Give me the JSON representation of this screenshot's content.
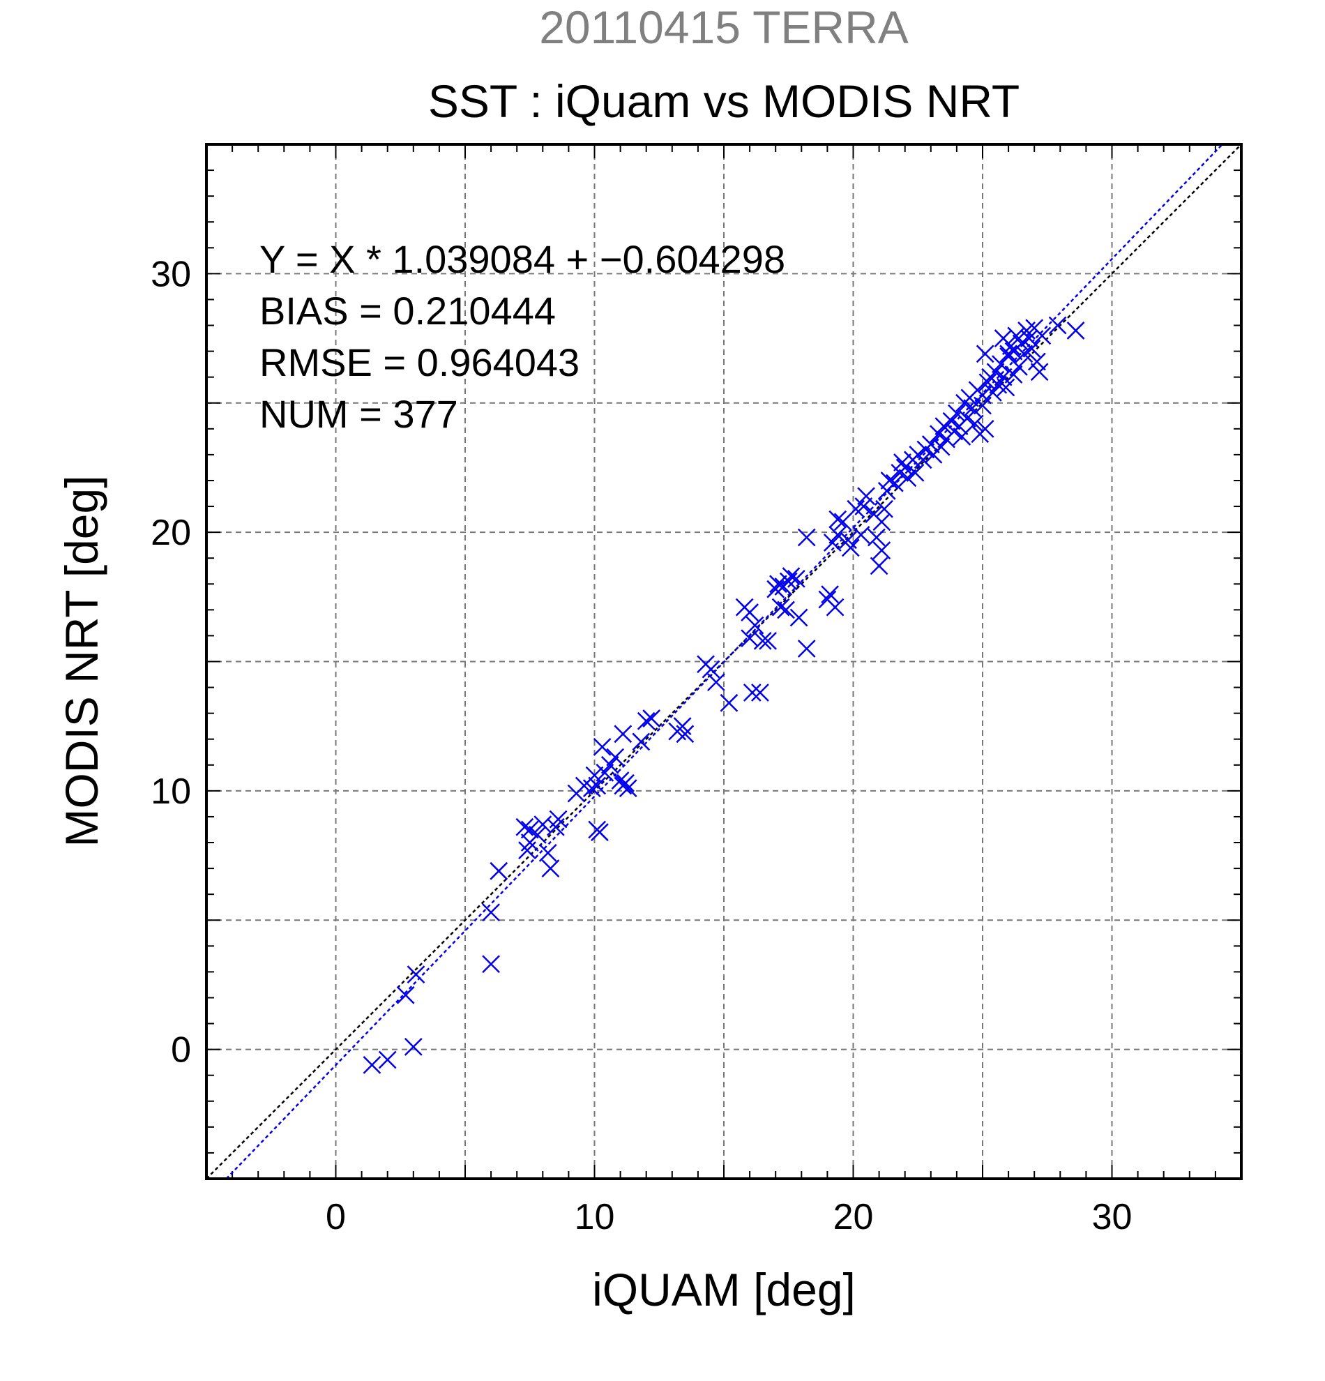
{
  "chart_data": {
    "type": "scatter",
    "subtitle": "20110415 TERRA",
    "title": "SST : iQuam vs MODIS NRT",
    "xlabel": "iQUAM [deg]",
    "ylabel": "MODIS NRT [deg]",
    "xlim": [
      -5,
      35
    ],
    "ylim": [
      -5,
      35
    ],
    "xticks": [
      0,
      10,
      20,
      30
    ],
    "yticks": [
      0,
      10,
      20,
      30
    ],
    "grid": true,
    "stats": [
      "Y = X * 1.039084 + −0.604298",
      "BIAS = 0.210444",
      "RMSE = 0.964043",
      "NUM = 377"
    ],
    "fit": {
      "slope": 1.039084,
      "intercept": -0.604298
    },
    "colors": {
      "points": "#0000ee",
      "fit_line": "#0000ee",
      "identity_line": "#000000",
      "subtitle": "#808080"
    },
    "series": [
      {
        "marker": "x",
        "points": [
          [
            1.4,
            -0.6
          ],
          [
            2.0,
            -0.4
          ],
          [
            3.0,
            0.1
          ],
          [
            2.7,
            2.1
          ],
          [
            3.1,
            2.9
          ],
          [
            6.0,
            3.3
          ],
          [
            6.0,
            5.3
          ],
          [
            6.3,
            6.9
          ],
          [
            7.3,
            8.6
          ],
          [
            7.5,
            8.5
          ],
          [
            7.8,
            8.3
          ],
          [
            7.5,
            8.0
          ],
          [
            7.4,
            7.7
          ],
          [
            8.0,
            8.7
          ],
          [
            8.2,
            7.6
          ],
          [
            8.3,
            7.0
          ],
          [
            8.5,
            8.6
          ],
          [
            8.6,
            8.9
          ],
          [
            9.3,
            9.9
          ],
          [
            9.6,
            10.2
          ],
          [
            9.9,
            10.1
          ],
          [
            10.0,
            10.6
          ],
          [
            10.1,
            10.2
          ],
          [
            10.2,
            8.4
          ],
          [
            10.1,
            8.5
          ],
          [
            10.3,
            11.7
          ],
          [
            10.4,
            10.7
          ],
          [
            10.6,
            11.0
          ],
          [
            10.8,
            11.3
          ],
          [
            11.0,
            10.4
          ],
          [
            11.1,
            10.2
          ],
          [
            11.2,
            10.3
          ],
          [
            11.3,
            10.1
          ],
          [
            11.1,
            12.2
          ],
          [
            11.8,
            11.9
          ],
          [
            12.0,
            12.7
          ],
          [
            12.2,
            12.8
          ],
          [
            13.2,
            12.3
          ],
          [
            13.4,
            12.5
          ],
          [
            13.5,
            12.2
          ],
          [
            14.3,
            14.9
          ],
          [
            14.5,
            14.7
          ],
          [
            14.7,
            14.2
          ],
          [
            15.2,
            13.4
          ],
          [
            15.8,
            17.1
          ],
          [
            16.0,
            16.9
          ],
          [
            16.2,
            16.4
          ],
          [
            16.0,
            15.9
          ],
          [
            16.5,
            15.8
          ],
          [
            16.7,
            15.8
          ],
          [
            16.1,
            13.8
          ],
          [
            16.4,
            13.8
          ],
          [
            17.0,
            17.8
          ],
          [
            17.1,
            18.0
          ],
          [
            17.3,
            17.9
          ],
          [
            17.2,
            17.1
          ],
          [
            17.4,
            17.0
          ],
          [
            17.5,
            18.1
          ],
          [
            17.6,
            18.3
          ],
          [
            17.8,
            18.2
          ],
          [
            17.9,
            16.7
          ],
          [
            18.2,
            15.5
          ],
          [
            18.2,
            19.8
          ],
          [
            19.0,
            17.4
          ],
          [
            19.1,
            17.6
          ],
          [
            19.3,
            17.1
          ],
          [
            19.2,
            19.6
          ],
          [
            19.4,
            19.9
          ],
          [
            19.6,
            20.4
          ],
          [
            19.4,
            20.5
          ],
          [
            19.8,
            19.7
          ],
          [
            19.9,
            19.4
          ],
          [
            20.1,
            20.9
          ],
          [
            20.3,
            19.9
          ],
          [
            20.4,
            21.0
          ],
          [
            20.5,
            21.4
          ],
          [
            20.8,
            20.7
          ],
          [
            20.9,
            19.8
          ],
          [
            21.0,
            18.7
          ],
          [
            21.1,
            19.3
          ],
          [
            21.1,
            20.4
          ],
          [
            21.2,
            20.9
          ],
          [
            21.3,
            21.6
          ],
          [
            21.4,
            22.0
          ],
          [
            21.6,
            21.9
          ],
          [
            21.8,
            22.3
          ],
          [
            21.9,
            22.7
          ],
          [
            22.0,
            22.5
          ],
          [
            22.1,
            22.1
          ],
          [
            22.3,
            22.8
          ],
          [
            22.4,
            22.3
          ],
          [
            22.5,
            23.0
          ],
          [
            22.7,
            22.8
          ],
          [
            22.8,
            23.2
          ],
          [
            23.0,
            23.4
          ],
          [
            23.1,
            23.0
          ],
          [
            23.3,
            23.8
          ],
          [
            23.4,
            23.3
          ],
          [
            23.5,
            24.1
          ],
          [
            23.6,
            23.6
          ],
          [
            23.8,
            24.3
          ],
          [
            23.9,
            23.9
          ],
          [
            24.0,
            24.6
          ],
          [
            24.1,
            24.1
          ],
          [
            24.2,
            23.7
          ],
          [
            24.3,
            25.0
          ],
          [
            24.4,
            24.4
          ],
          [
            24.5,
            25.2
          ],
          [
            24.6,
            24.8
          ],
          [
            24.7,
            24.2
          ],
          [
            24.8,
            25.5
          ],
          [
            24.9,
            23.8
          ],
          [
            25.0,
            25.3
          ],
          [
            25.0,
            24.9
          ],
          [
            25.1,
            24.0
          ],
          [
            25.2,
            25.8
          ],
          [
            25.3,
            26.0
          ],
          [
            25.4,
            25.4
          ],
          [
            25.5,
            26.2
          ],
          [
            25.6,
            25.7
          ],
          [
            25.7,
            26.5
          ],
          [
            25.8,
            26.0
          ],
          [
            25.9,
            25.6
          ],
          [
            26.0,
            26.8
          ],
          [
            26.1,
            27.2
          ],
          [
            26.2,
            27.0
          ],
          [
            26.3,
            27.6
          ],
          [
            26.4,
            26.4
          ],
          [
            26.5,
            27.3
          ],
          [
            26.6,
            26.9
          ],
          [
            26.7,
            27.8
          ],
          [
            26.8,
            27.5
          ],
          [
            26.9,
            27.1
          ],
          [
            27.0,
            27.9
          ],
          [
            27.1,
            26.6
          ],
          [
            27.2,
            26.2
          ],
          [
            27.3,
            27.6
          ],
          [
            26.2,
            26.1
          ],
          [
            26.0,
            26.9
          ],
          [
            25.8,
            27.5
          ],
          [
            25.1,
            26.9
          ],
          [
            27.9,
            28.0
          ],
          [
            28.6,
            27.8
          ]
        ]
      }
    ]
  }
}
